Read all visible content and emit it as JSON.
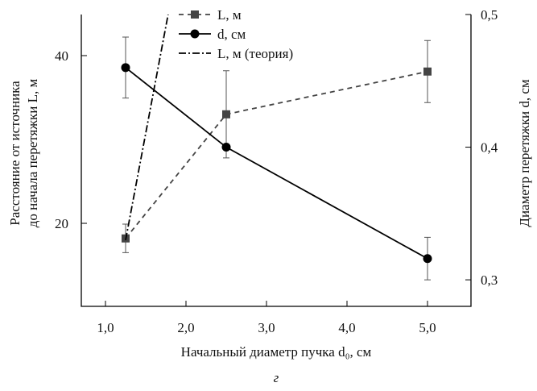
{
  "chart_data": {
    "type": "line",
    "xlabel": "Начальный диаметр пучка d₀, см",
    "ylabel": [
      "Расстояние от источника",
      "до начала перетяжки L, м"
    ],
    "y2label": "Диаметр перетяжки d, см",
    "caption": "г",
    "xlim": [
      0.7,
      5.54
    ],
    "xticks": [
      {
        "value": 1,
        "label": "1,0"
      },
      {
        "value": 2,
        "label": "2,0"
      },
      {
        "value": 3,
        "label": "3,0"
      },
      {
        "value": 4,
        "label": "4,0"
      },
      {
        "value": 5,
        "label": "5,0"
      }
    ],
    "ylim": [
      10.1,
      44.9
    ],
    "yticks": [
      20,
      40
    ],
    "y2lim": [
      0.28,
      0.5
    ],
    "y2ticks": [
      {
        "value": 0.3,
        "label": "0,3"
      },
      {
        "value": 0.4,
        "label": "0,4"
      },
      {
        "value": 0.5,
        "label": "0,5"
      }
    ],
    "series": [
      {
        "name": "L, м",
        "color": "#444444",
        "marker": "square",
        "dash": "6,5",
        "x": [
          1.25,
          2.5,
          5
        ],
        "values": [
          18.2,
          33.0,
          38.1
        ],
        "errors": [
          1.7,
          5.2,
          3.7
        ]
      },
      {
        "name": "d, см",
        "color": "#000000",
        "marker": "circle",
        "dash": "none",
        "axis": "y2",
        "x": [
          1.25,
          2.5,
          5
        ],
        "values": [
          0.46,
          0.4,
          0.316
        ],
        "errors": [
          0.023,
          null,
          0.016
        ]
      },
      {
        "name": "L, м (теория)",
        "color": "#000000",
        "marker": "none",
        "dash": "9,3,2,3",
        "x": [
          1.25,
          1.78
        ],
        "values": [
          18,
          45
        ]
      }
    ]
  }
}
